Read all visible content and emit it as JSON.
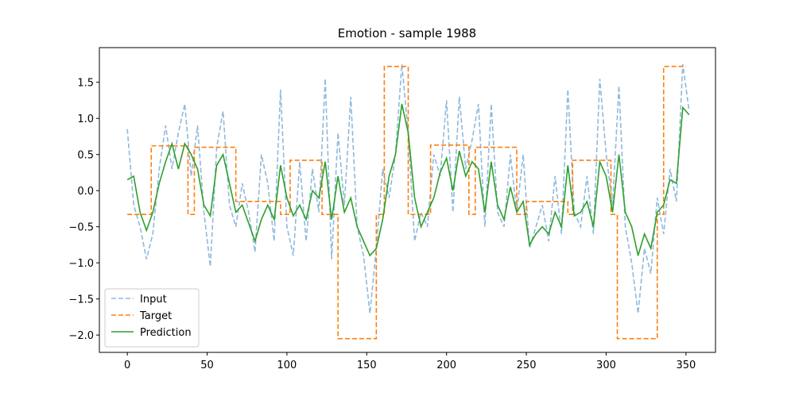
{
  "chart_data": {
    "type": "line",
    "title": "Emotion - sample 1988",
    "xlim": [
      -17.5,
      368.5
    ],
    "ylim": [
      -2.24,
      1.98
    ],
    "xticks": [
      0,
      50,
      100,
      150,
      200,
      250,
      300,
      350
    ],
    "yticks": [
      {
        "value": -2,
        "label": "−2.0"
      },
      {
        "value": -1.5,
        "label": "−1.5"
      },
      {
        "value": -1,
        "label": "−1.0"
      },
      {
        "value": -0.5,
        "label": "−0.5"
      },
      {
        "value": 0,
        "label": "0.0"
      },
      {
        "value": 0.5,
        "label": "0.5"
      },
      {
        "value": 1,
        "label": "1.0"
      },
      {
        "value": 1.5,
        "label": "1.5"
      }
    ],
    "legend": "lower left",
    "x": [
      0,
      4,
      8,
      12,
      16,
      20,
      24,
      28,
      32,
      36,
      40,
      44,
      48,
      52,
      56,
      60,
      64,
      68,
      72,
      76,
      80,
      84,
      88,
      92,
      96,
      100,
      104,
      108,
      112,
      116,
      120,
      124,
      128,
      132,
      136,
      140,
      144,
      148,
      152,
      156,
      160,
      164,
      168,
      172,
      176,
      180,
      184,
      188,
      192,
      196,
      200,
      204,
      208,
      212,
      216,
      220,
      224,
      228,
      232,
      236,
      240,
      244,
      248,
      252,
      256,
      260,
      264,
      268,
      272,
      276,
      280,
      284,
      288,
      292,
      296,
      300,
      304,
      308,
      312,
      316,
      320,
      324,
      328,
      332,
      336,
      340,
      344,
      348,
      352
    ],
    "series": [
      {
        "name": "Input",
        "color": "#8fb9dc",
        "linestyle": "dashed",
        "values": [
          0.85,
          -0.2,
          -0.5,
          -0.95,
          -0.6,
          0.3,
          0.9,
          0.3,
          0.8,
          1.2,
          0.2,
          0.9,
          -0.3,
          -1.05,
          0.6,
          1.1,
          -0.2,
          -0.5,
          0.1,
          -0.3,
          -0.85,
          0.5,
          0.1,
          -0.7,
          1.4,
          -0.5,
          -0.9,
          0.4,
          -0.7,
          0.3,
          -0.3,
          1.55,
          -0.95,
          0.8,
          -0.2,
          1.3,
          -0.5,
          -0.9,
          -1.7,
          -0.8,
          0.3,
          -0.1,
          0.5,
          1.75,
          0.8,
          -0.7,
          -0.3,
          -0.5,
          0.5,
          0.2,
          1.25,
          -0.3,
          1.3,
          0.3,
          0.7,
          1.2,
          -0.5,
          1.2,
          -0.3,
          -0.5,
          0.5,
          -0.3,
          0.5,
          -0.8,
          -0.5,
          -0.2,
          -0.7,
          0.2,
          -0.6,
          1.4,
          -0.3,
          -0.5,
          0.2,
          -0.6,
          1.55,
          0.5,
          -0.2,
          1.45,
          -0.5,
          -1.0,
          -1.7,
          -0.8,
          -1.15,
          -0.1,
          -0.6,
          0.3,
          -0.15,
          1.75,
          1.1
        ]
      },
      {
        "name": "Target",
        "color": "#ff7f0e",
        "linestyle": "dashed",
        "x": [
          0,
          15,
          15,
          38,
          38,
          42,
          42,
          68,
          68,
          96,
          96,
          102,
          102,
          122,
          122,
          132,
          132,
          156,
          156,
          161,
          161,
          176,
          176,
          190,
          190,
          214,
          214,
          218,
          218,
          244,
          244,
          250,
          250,
          276,
          276,
          279,
          279,
          303,
          303,
          307,
          307,
          332,
          332,
          336,
          336,
          350
        ],
        "values": [
          -0.33,
          -0.33,
          0.62,
          0.62,
          -0.33,
          -0.33,
          0.6,
          0.6,
          -0.15,
          -0.15,
          -0.33,
          -0.33,
          0.42,
          0.42,
          -0.33,
          -0.33,
          -2.05,
          -2.05,
          -0.33,
          -0.33,
          1.72,
          1.72,
          -0.33,
          -0.33,
          0.63,
          0.63,
          -0.33,
          -0.33,
          0.6,
          0.6,
          -0.33,
          -0.33,
          -0.15,
          -0.15,
          -0.33,
          -0.33,
          0.42,
          0.42,
          -0.33,
          -0.33,
          -2.05,
          -2.05,
          -0.33,
          -0.33,
          1.72,
          1.72
        ]
      },
      {
        "name": "Prediction",
        "color": "#2ca02c",
        "linestyle": "solid",
        "values": [
          0.15,
          0.2,
          -0.3,
          -0.55,
          -0.3,
          0.1,
          0.4,
          0.65,
          0.3,
          0.65,
          0.5,
          0.3,
          -0.2,
          -0.35,
          0.35,
          0.5,
          0.1,
          -0.3,
          -0.2,
          -0.45,
          -0.7,
          -0.4,
          -0.2,
          -0.4,
          0.35,
          -0.1,
          -0.35,
          -0.2,
          -0.4,
          0.0,
          -0.1,
          0.4,
          -0.4,
          0.2,
          -0.3,
          -0.1,
          -0.5,
          -0.7,
          -0.9,
          -0.8,
          -0.4,
          0.2,
          0.5,
          1.2,
          0.8,
          -0.1,
          -0.5,
          -0.3,
          -0.1,
          0.25,
          0.45,
          0.0,
          0.55,
          0.2,
          0.4,
          0.3,
          -0.3,
          0.4,
          -0.2,
          -0.4,
          0.05,
          -0.3,
          -0.15,
          -0.75,
          -0.6,
          -0.5,
          -0.6,
          -0.3,
          -0.5,
          0.35,
          -0.35,
          -0.3,
          -0.15,
          -0.5,
          0.4,
          0.2,
          -0.3,
          0.5,
          -0.3,
          -0.5,
          -0.9,
          -0.6,
          -0.8,
          -0.3,
          -0.2,
          0.15,
          0.1,
          1.15,
          1.05
        ]
      }
    ]
  }
}
